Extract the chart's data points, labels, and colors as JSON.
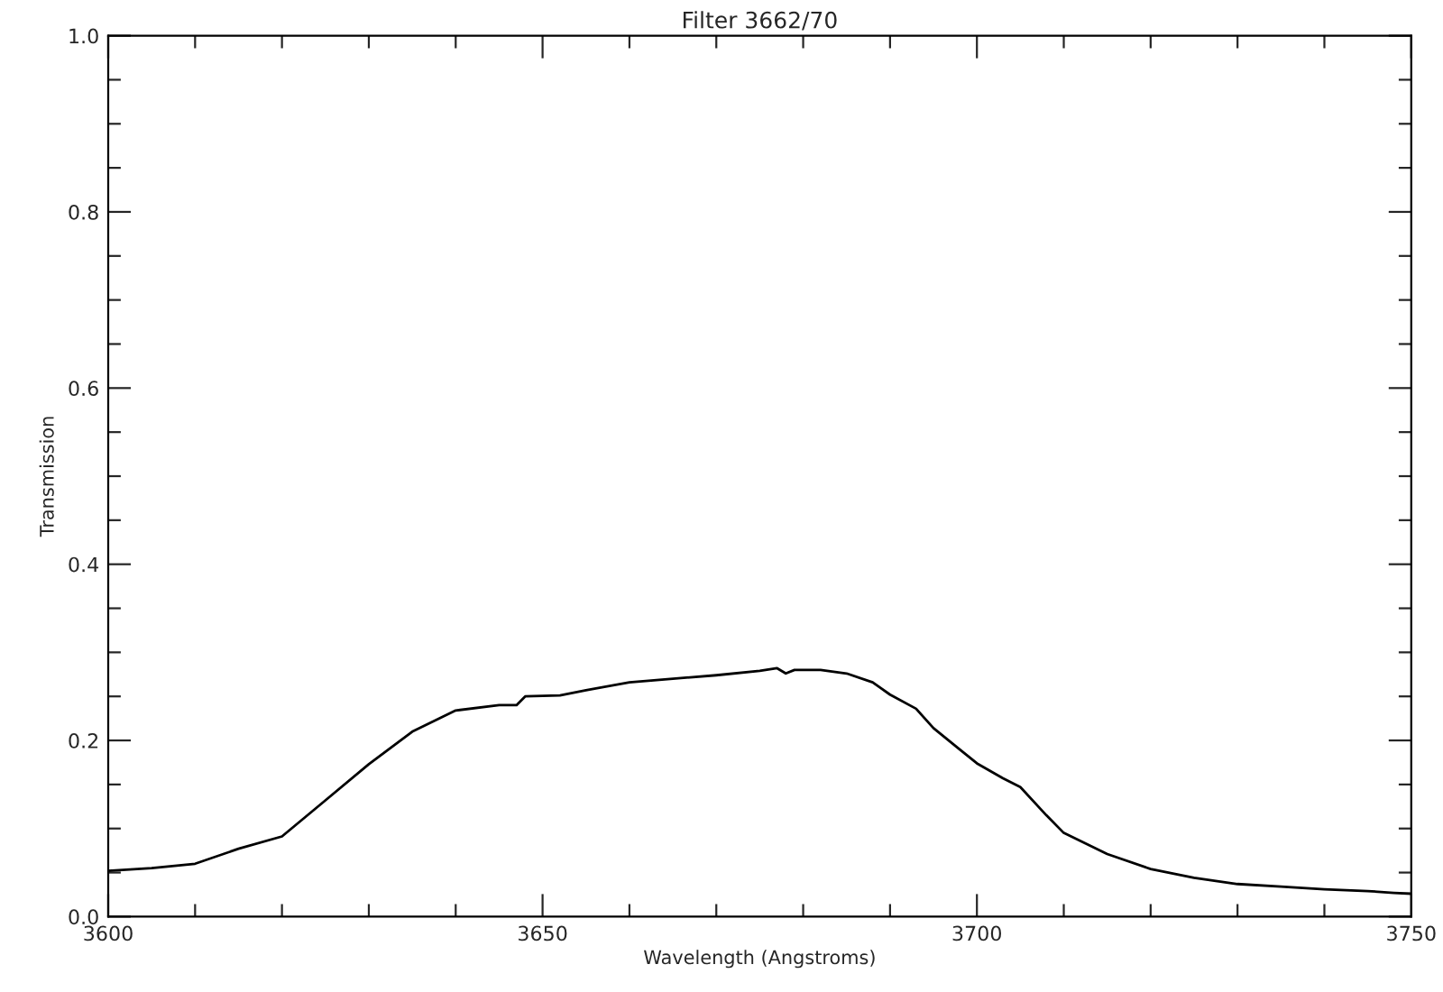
{
  "chart_data": {
    "type": "line",
    "title": "Filter 3662/70",
    "xlabel": "Wavelength (Angstroms)",
    "ylabel": "Transmission",
    "xlim": [
      3600,
      3750
    ],
    "xticks": [
      3600,
      3650,
      3700,
      3750
    ],
    "ylim": [
      0,
      1
    ],
    "yticks": [
      {
        "value": 0,
        "label": "0.0"
      },
      {
        "value": 0.2,
        "label": "0.2"
      },
      {
        "value": 0.4,
        "label": "0.4"
      },
      {
        "value": 0.6,
        "label": "0.6"
      },
      {
        "value": 0.8,
        "label": "0.8"
      },
      {
        "value": 1,
        "label": "1.0"
      }
    ],
    "grid": false,
    "marker": "none",
    "line_style": "solid",
    "series": [
      {
        "color": "#000000",
        "x": [
          3600,
          3605,
          3610,
          3615,
          3620,
          3625,
          3630,
          3635,
          3640,
          3645,
          3647,
          3648,
          3652,
          3655,
          3660,
          3665,
          3670,
          3675,
          3677,
          3678,
          3679,
          3682,
          3685,
          3688,
          3690,
          3693,
          3695,
          3698,
          3700,
          3703,
          3705,
          3708,
          3710,
          3715,
          3720,
          3725,
          3730,
          3735,
          3740,
          3745,
          3748,
          3750
        ],
        "values": [
          0.052,
          0.055,
          0.06,
          0.077,
          0.091,
          0.132,
          0.173,
          0.21,
          0.234,
          0.24,
          0.24,
          0.25,
          0.251,
          0.257,
          0.266,
          0.27,
          0.274,
          0.279,
          0.282,
          0.276,
          0.28,
          0.28,
          0.276,
          0.266,
          0.252,
          0.236,
          0.214,
          0.19,
          0.174,
          0.157,
          0.147,
          0.115,
          0.095,
          0.071,
          0.054,
          0.044,
          0.037,
          0.034,
          0.031,
          0.029,
          0.027,
          0.026
        ]
      }
    ]
  }
}
